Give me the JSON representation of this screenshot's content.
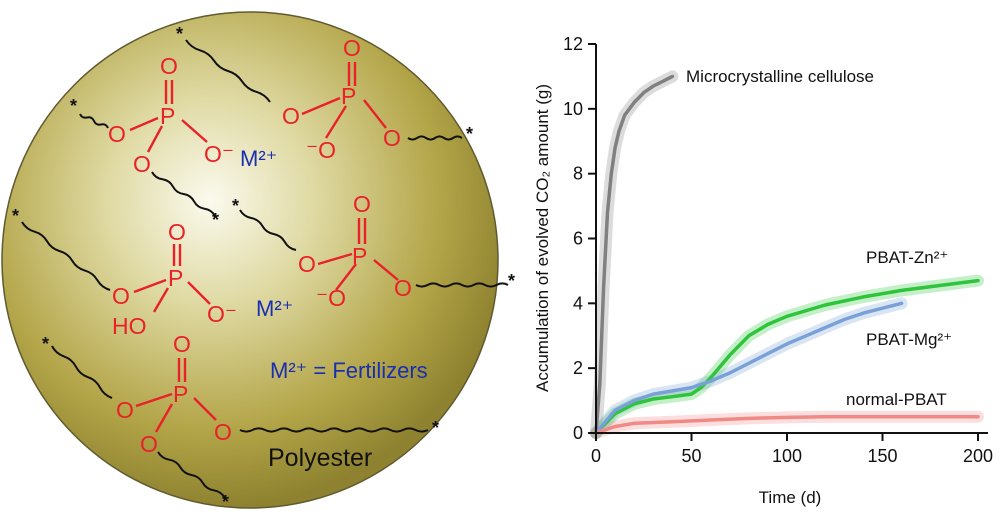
{
  "diagram": {
    "polymer_label": "Polyester",
    "legend": "M²⁺ = Fertilizers",
    "metal_ion": "M²⁺",
    "atoms": {
      "o": "O",
      "p": "P",
      "oh": "HO",
      "o_minus": "O⁻",
      "minus_o": "⁻O"
    },
    "chain_end": "*"
  },
  "chart_data": {
    "type": "line",
    "title": "",
    "xlabel": "Time (d)",
    "ylabel": "Accumulation of evolved CO₂ amount (g)",
    "xlim": [
      0,
      200
    ],
    "ylim": [
      0,
      12
    ],
    "xticks": [
      "0",
      "50",
      "100",
      "150",
      "200"
    ],
    "yticks": [
      "0",
      "2",
      "4",
      "6",
      "8",
      "10",
      "12"
    ],
    "series": [
      {
        "name": "Microcrystalline cellulose",
        "color": "#808080",
        "x": [
          0,
          2,
          4,
          6,
          8,
          10,
          12,
          15,
          20,
          25,
          30,
          35,
          40
        ],
        "y": [
          0,
          1.5,
          4.5,
          6.8,
          8.0,
          8.8,
          9.3,
          9.8,
          10.2,
          10.5,
          10.7,
          10.85,
          11.0
        ]
      },
      {
        "name": "PBAT-Zn²⁺",
        "color": "#2ec43b",
        "x": [
          0,
          10,
          20,
          30,
          40,
          50,
          55,
          60,
          70,
          80,
          90,
          100,
          120,
          140,
          160,
          180,
          200
        ],
        "y": [
          0,
          0.6,
          0.9,
          1.05,
          1.12,
          1.2,
          1.4,
          1.7,
          2.4,
          3.0,
          3.35,
          3.6,
          3.95,
          4.2,
          4.4,
          4.55,
          4.7
        ]
      },
      {
        "name": "PBAT-Mg²⁺",
        "color": "#7aa0d8",
        "x": [
          0,
          10,
          20,
          30,
          40,
          50,
          60,
          70,
          80,
          90,
          100,
          110,
          120,
          130,
          140,
          150,
          160
        ],
        "y": [
          0,
          0.7,
          1.0,
          1.2,
          1.3,
          1.4,
          1.6,
          1.85,
          2.15,
          2.45,
          2.75,
          3.0,
          3.25,
          3.5,
          3.7,
          3.85,
          4.0
        ]
      },
      {
        "name": "normal-PBAT",
        "color": "#ef8a86",
        "x": [
          0,
          10,
          20,
          40,
          60,
          80,
          100,
          120,
          140,
          160,
          180,
          200
        ],
        "y": [
          0,
          0.2,
          0.3,
          0.35,
          0.4,
          0.45,
          0.48,
          0.5,
          0.5,
          0.5,
          0.5,
          0.5
        ]
      }
    ]
  }
}
